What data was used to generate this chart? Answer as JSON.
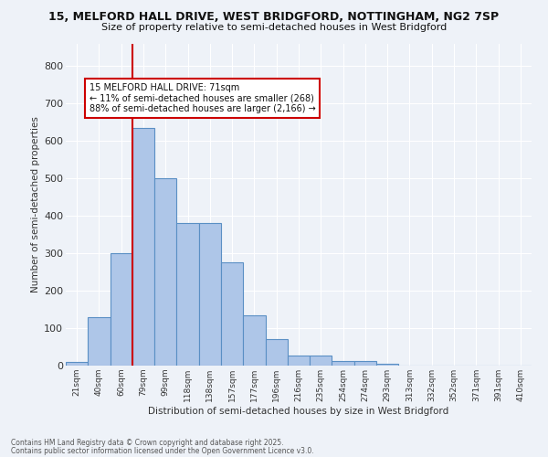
{
  "title1": "15, MELFORD HALL DRIVE, WEST BRIDGFORD, NOTTINGHAM, NG2 7SP",
  "title2": "Size of property relative to semi-detached houses in West Bridgford",
  "xlabel": "Distribution of semi-detached houses by size in West Bridgford",
  "ylabel": "Number of semi-detached properties",
  "footnote1": "Contains HM Land Registry data © Crown copyright and database right 2025.",
  "footnote2": "Contains public sector information licensed under the Open Government Licence v3.0.",
  "bar_labels": [
    "21sqm",
    "40sqm",
    "60sqm",
    "79sqm",
    "99sqm",
    "118sqm",
    "138sqm",
    "157sqm",
    "177sqm",
    "196sqm",
    "216sqm",
    "235sqm",
    "254sqm",
    "274sqm",
    "293sqm",
    "313sqm",
    "332sqm",
    "352sqm",
    "371sqm",
    "391sqm",
    "410sqm"
  ],
  "bar_values": [
    10,
    130,
    300,
    635,
    500,
    380,
    380,
    275,
    135,
    70,
    28,
    28,
    12,
    12,
    5,
    0,
    0,
    0,
    0,
    0,
    0
  ],
  "bar_color": "#aec6e8",
  "bar_edge_color": "#5a8fc4",
  "bg_color": "#eef2f8",
  "grid_color": "#ffffff",
  "vline_color": "#cc0000",
  "annotation_title": "15 MELFORD HALL DRIVE: 71sqm",
  "annotation_line1": "← 11% of semi-detached houses are smaller (268)",
  "annotation_line2": "88% of semi-detached houses are larger (2,166) →",
  "annotation_box_color": "#ffffff",
  "annotation_box_edge": "#cc0000",
  "ylim": [
    0,
    860
  ],
  "yticks": [
    0,
    100,
    200,
    300,
    400,
    500,
    600,
    700,
    800
  ]
}
